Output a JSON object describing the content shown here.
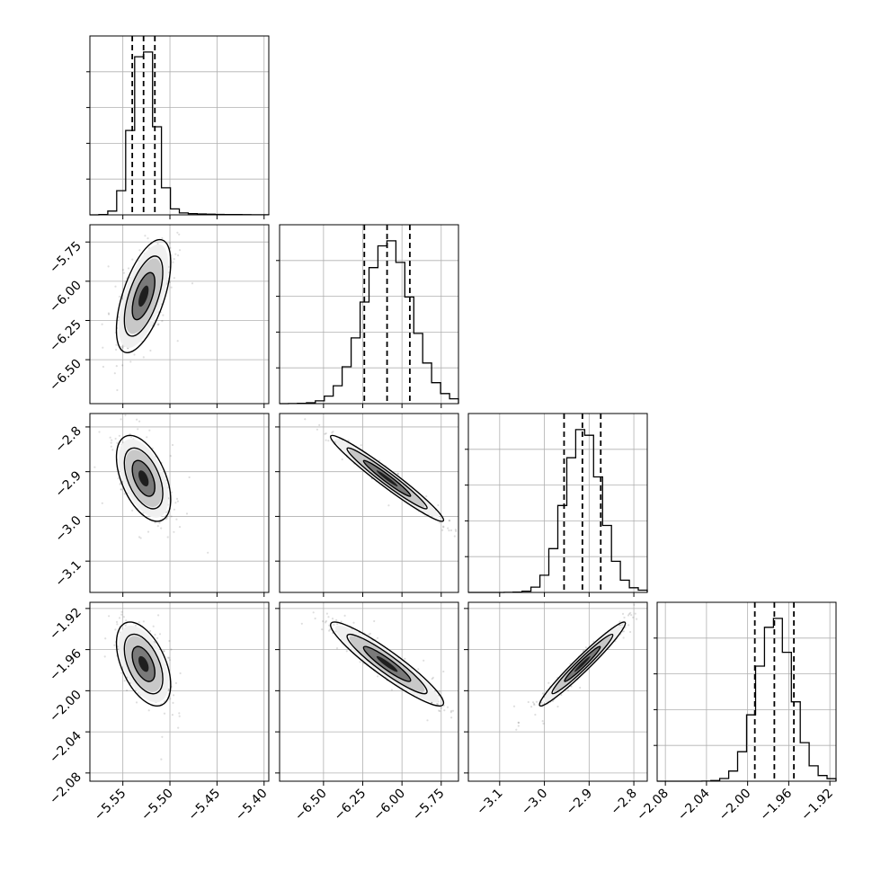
{
  "chart_data": {
    "type": "corner",
    "parameters": [
      {
        "range": [
          -5.585,
          -5.395
        ],
        "ticks": [
          -5.55,
          -5.5,
          -5.45,
          -5.4
        ],
        "tick_labels": [
          "−5.55",
          "−5.50",
          "−5.45",
          "−5.40"
        ],
        "mean": -5.528,
        "sd": 0.012,
        "quantiles": [
          -5.54,
          -5.528,
          -5.516
        ]
      },
      {
        "range": [
          -6.78,
          -5.64
        ],
        "ticks": [
          -6.5,
          -6.25,
          -6.0,
          -5.75
        ],
        "tick_labels": [
          "−6.50",
          "−6.25",
          "−6.00",
          "−5.75"
        ],
        "mean": -6.095,
        "sd": 0.15,
        "quantiles": [
          -6.24,
          -6.095,
          -5.95
        ]
      },
      {
        "range": [
          -3.17,
          -2.77
        ],
        "ticks": [
          -3.1,
          -3.0,
          -2.9,
          -2.8
        ],
        "tick_labels": [
          "−3.1",
          "−3.0",
          "−2.9",
          "−2.8"
        ],
        "mean": -2.915,
        "sd": 0.04,
        "quantiles": [
          -2.956,
          -2.915,
          -2.874
        ]
      },
      {
        "range": [
          -2.088,
          -1.914
        ],
        "ticks": [
          -2.08,
          -2.04,
          -2.0,
          -1.96,
          -1.92
        ],
        "tick_labels": [
          "−2.08",
          "−2.04",
          "−2.00",
          "−1.96",
          "−1.92"
        ],
        "mean": -1.974,
        "sd": 0.017,
        "quantiles": [
          -1.993,
          -1.974,
          -1.955
        ]
      }
    ],
    "correlations": [
      [
        1,
        0.6,
        -0.5,
        -0.5
      ],
      [
        0.6,
        1,
        -0.97,
        -0.93
      ],
      [
        -0.5,
        -0.97,
        1,
        0.97
      ],
      [
        -0.5,
        -0.93,
        0.97,
        1
      ]
    ],
    "histogram_bins": 20,
    "grid": true,
    "legend": "none"
  },
  "colors": {
    "line": "#000000",
    "grid": "#b0b0b0",
    "samples": "#000000"
  }
}
